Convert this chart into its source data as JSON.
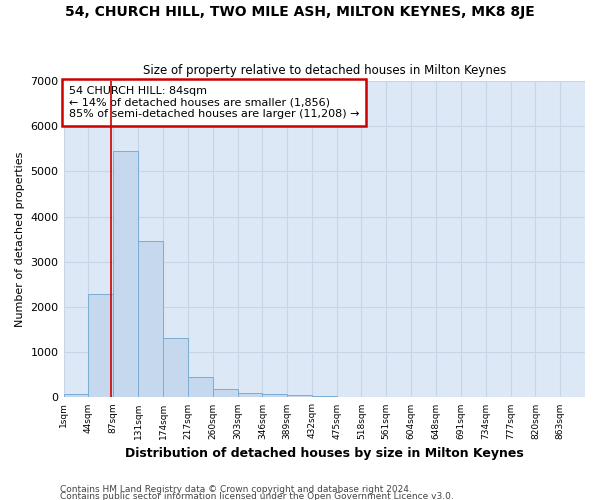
{
  "title": "54, CHURCH HILL, TWO MILE ASH, MILTON KEYNES, MK8 8JE",
  "subtitle": "Size of property relative to detached houses in Milton Keynes",
  "xlabel": "Distribution of detached houses by size in Milton Keynes",
  "ylabel": "Number of detached properties",
  "footnote1": "Contains HM Land Registry data © Crown copyright and database right 2024.",
  "footnote2": "Contains public sector information licensed under the Open Government Licence v3.0.",
  "bar_left_edges": [
    1,
    44,
    87,
    131,
    174,
    217,
    260,
    303,
    346,
    389,
    432,
    475,
    518,
    561,
    604,
    648,
    691,
    734,
    777,
    820
  ],
  "bar_widths": [
    43,
    43,
    43,
    43,
    43,
    43,
    43,
    43,
    43,
    43,
    43,
    43,
    43,
    43,
    43,
    43,
    43,
    43,
    43,
    43
  ],
  "bar_heights": [
    75,
    2280,
    5450,
    3450,
    1320,
    450,
    185,
    100,
    75,
    50,
    35,
    0,
    0,
    0,
    0,
    0,
    0,
    0,
    0,
    0
  ],
  "bar_color": "#c5d8ee",
  "bar_edgecolor": "#7aadd4",
  "tick_labels": [
    "1sqm",
    "44sqm",
    "87sqm",
    "131sqm",
    "174sqm",
    "217sqm",
    "260sqm",
    "303sqm",
    "346sqm",
    "389sqm",
    "432sqm",
    "475sqm",
    "518sqm",
    "561sqm",
    "604sqm",
    "648sqm",
    "691sqm",
    "734sqm",
    "777sqm",
    "820sqm",
    "863sqm"
  ],
  "ylim": [
    0,
    7000
  ],
  "yticks": [
    0,
    1000,
    2000,
    3000,
    4000,
    5000,
    6000,
    7000
  ],
  "property_line_x": 84,
  "annotation_title": "54 CHURCH HILL: 84sqm",
  "annotation_line1": "← 14% of detached houses are smaller (1,856)",
  "annotation_line2": "85% of semi-detached houses are larger (11,208) →",
  "annotation_box_facecolor": "#ffffff",
  "annotation_border_color": "#cc0000",
  "grid_color": "#c8d4e8",
  "background_color": "#ffffff",
  "plot_bg_color": "#dce8f5"
}
